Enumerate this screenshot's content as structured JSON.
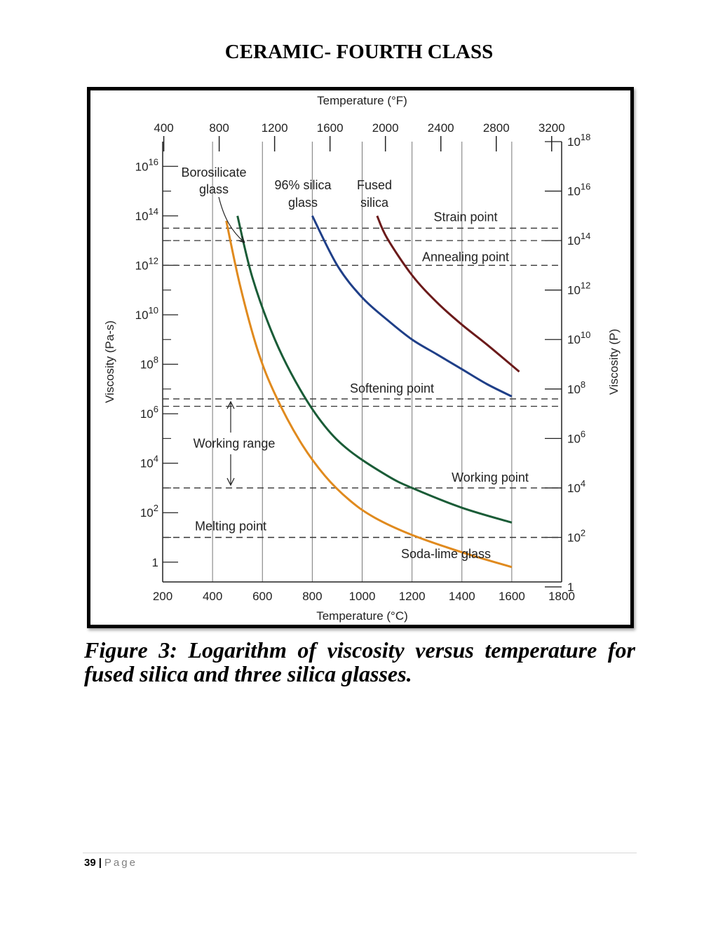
{
  "page": {
    "heading": "CERAMIC- FOURTH CLASS",
    "caption": "Figure 3: Logarithm of viscosity versus temperature for fused silica and three silica glasses.",
    "footer": {
      "page_number": "39",
      "separator": "|",
      "page_label": "Page"
    }
  },
  "chart_data": {
    "type": "line",
    "title": "",
    "xlabel_bottom": "Temperature (°C)",
    "xlabel_top": "Temperature (°F)",
    "ylabel_left": "Viscosity (Pa-s)",
    "ylabel_right": "Viscosity (P)",
    "xlim": [
      200,
      1800
    ],
    "ylim_log10_pas": [
      -0.8,
      17
    ],
    "x_ticks_c": [
      "200",
      "400",
      "600",
      "800",
      "1000",
      "1200",
      "1400",
      "1600",
      "1800"
    ],
    "x_ticks_f": [
      "400",
      "800",
      "1200",
      "1600",
      "2000",
      "2400",
      "2800",
      "3200"
    ],
    "x_ticks_f_values": [
      400,
      800,
      1200,
      1600,
      2000,
      2400,
      2800,
      3200
    ],
    "y_ticks_left": [
      {
        "value": 16,
        "base": "10",
        "exp": "16"
      },
      {
        "value": 14,
        "base": "10",
        "exp": "14"
      },
      {
        "value": 12,
        "base": "10",
        "exp": "12"
      },
      {
        "value": 10,
        "base": "10",
        "exp": "10"
      },
      {
        "value": 8,
        "base": "10",
        "exp": "8"
      },
      {
        "value": 6,
        "base": "10",
        "exp": "6"
      },
      {
        "value": 4,
        "base": "10",
        "exp": "4"
      },
      {
        "value": 2,
        "base": "10",
        "exp": "2"
      },
      {
        "value": 0,
        "base": "1",
        "exp": ""
      }
    ],
    "y_ticks_right": [
      {
        "value": 18,
        "base": "10",
        "exp": "18"
      },
      {
        "value": 16,
        "base": "10",
        "exp": "16"
      },
      {
        "value": 14,
        "base": "10",
        "exp": "14"
      },
      {
        "value": 12,
        "base": "10",
        "exp": "12"
      },
      {
        "value": 10,
        "base": "10",
        "exp": "10"
      },
      {
        "value": 8,
        "base": "10",
        "exp": "8"
      },
      {
        "value": 6,
        "base": "10",
        "exp": "6"
      },
      {
        "value": 4,
        "base": "10",
        "exp": "4"
      },
      {
        "value": 2,
        "base": "10",
        "exp": "2"
      },
      {
        "value": 0,
        "base": "1",
        "exp": ""
      }
    ],
    "reference_lines": [
      {
        "label": "Strain point",
        "log10_pas": 13.5
      },
      {
        "label": "Annealing point",
        "log10_pas": 12
      },
      {
        "label": "Softening point",
        "log10_pas": 6.6
      },
      {
        "label": "Working point",
        "log10_pas": 3
      },
      {
        "label": "Melting point",
        "log10_pas": 1
      }
    ],
    "series": [
      {
        "name": "Soda-lime glass",
        "color": "#e08a1e",
        "points": [
          [
            455,
            13.8
          ],
          [
            510,
            11.2
          ],
          [
            580,
            8.6
          ],
          [
            650,
            6.8
          ],
          [
            750,
            4.9
          ],
          [
            850,
            3.5
          ],
          [
            950,
            2.5
          ],
          [
            1050,
            1.8
          ],
          [
            1200,
            1.1
          ],
          [
            1400,
            0.4
          ],
          [
            1600,
            -0.2
          ]
        ]
      },
      {
        "name": "Borosilicate glass",
        "color": "#1a5c37",
        "points": [
          [
            500,
            14
          ],
          [
            560,
            11.5
          ],
          [
            650,
            9
          ],
          [
            750,
            7
          ],
          [
            850,
            5.5
          ],
          [
            950,
            4.5
          ],
          [
            1100,
            3.5
          ],
          [
            1200,
            3
          ],
          [
            1400,
            2.2
          ],
          [
            1600,
            1.6
          ]
        ]
      },
      {
        "name": "96% silica glass",
        "color": "#1f3f88",
        "points": [
          [
            800,
            14
          ],
          [
            900,
            12
          ],
          [
            1000,
            10.7
          ],
          [
            1100,
            9.8
          ],
          [
            1200,
            9
          ],
          [
            1300,
            8.4
          ],
          [
            1400,
            7.8
          ],
          [
            1500,
            7.2
          ],
          [
            1600,
            6.7
          ]
        ]
      },
      {
        "name": "Fused silica",
        "color": "#6b1a1a",
        "points": [
          [
            1060,
            14
          ],
          [
            1100,
            13.1
          ],
          [
            1200,
            11.6
          ],
          [
            1300,
            10.5
          ],
          [
            1400,
            9.6
          ],
          [
            1500,
            8.8
          ],
          [
            1630,
            7.7
          ]
        ]
      }
    ],
    "annotations": {
      "borosilicate_label": [
        "Borosilicate",
        "glass"
      ],
      "silica96_label": [
        "96% silica",
        "glass"
      ],
      "fused_label": [
        "Fused",
        "silica"
      ],
      "soda_label": "Soda-lime glass",
      "working_range": "Working range"
    }
  }
}
